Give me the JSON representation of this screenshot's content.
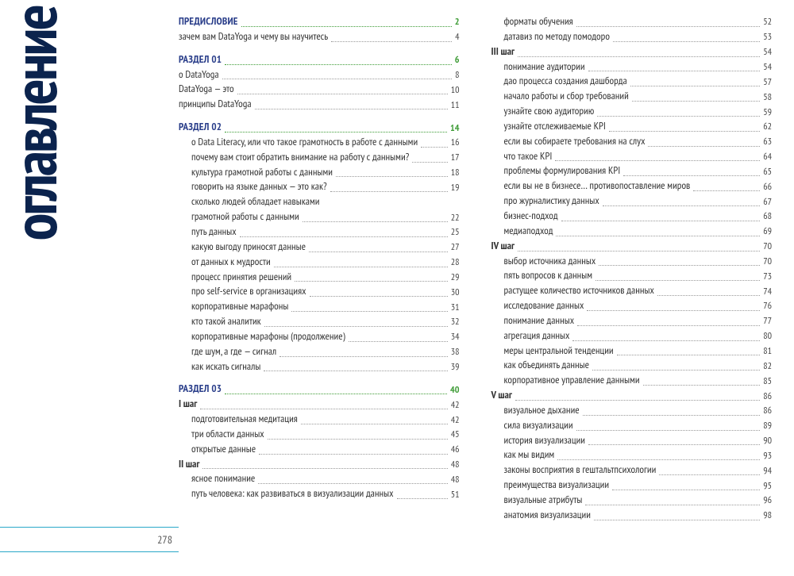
{
  "vtitle": "оглавление",
  "page_number": "278",
  "colors": {
    "title": "#0b234d",
    "section_label": "#2a3e8a",
    "section_page": "#3d9b35",
    "rule": "#2aa8c9",
    "text": "#333333"
  },
  "left_column": [
    {
      "kind": "section",
      "label": "ПРЕДИСЛОВИЕ",
      "page": "2",
      "indent": 0
    },
    {
      "kind": "entry",
      "label": "зачем вам DataYoga и чему вы научитесь",
      "page": "4",
      "indent": 0
    },
    {
      "kind": "spacer"
    },
    {
      "kind": "section",
      "label": "РАЗДЕЛ 01",
      "page": "6",
      "indent": 0
    },
    {
      "kind": "entry",
      "label": "о DataYoga",
      "page": "8",
      "indent": 0
    },
    {
      "kind": "entry",
      "label": "DataYoga — это",
      "page": "10",
      "indent": 0
    },
    {
      "kind": "entry",
      "label": "принципы DataYoga",
      "page": "11",
      "indent": 0
    },
    {
      "kind": "spacer"
    },
    {
      "kind": "section",
      "label": "РАЗДЕЛ 02",
      "page": "14",
      "indent": 0
    },
    {
      "kind": "entry",
      "label": "о Data Literacy, или что такое грамотность в работе с данными",
      "page": "16",
      "indent": 1
    },
    {
      "kind": "entry",
      "label": "почему вам стоит обратить внимание на работу с данными?",
      "page": "17",
      "indent": 1
    },
    {
      "kind": "entry",
      "label": "культура грамотной работы с данными",
      "page": "18",
      "indent": 1
    },
    {
      "kind": "entry",
      "label": "говорить на языке данных — это как?",
      "page": "19",
      "indent": 1
    },
    {
      "kind": "entry",
      "label": "сколько людей обладает навыками",
      "indent": 1
    },
    {
      "kind": "entry",
      "label": "грамотной работы с данными",
      "page": "22",
      "indent": 1
    },
    {
      "kind": "entry",
      "label": "путь данных",
      "page": "25",
      "indent": 1
    },
    {
      "kind": "entry",
      "label": "какую выгоду приносят данные",
      "page": "27",
      "indent": 1
    },
    {
      "kind": "entry",
      "label": "от данных к мудрости",
      "page": "28",
      "indent": 1
    },
    {
      "kind": "entry",
      "label": "процесс принятия решений",
      "page": "29",
      "indent": 1
    },
    {
      "kind": "entry",
      "label": "про self-service в организациях",
      "page": "30",
      "indent": 1
    },
    {
      "kind": "entry",
      "label": "корпоративные марафоны",
      "page": "31",
      "indent": 1
    },
    {
      "kind": "entry",
      "label": "кто такой аналитик",
      "page": "32",
      "indent": 1
    },
    {
      "kind": "entry",
      "label": "корпоративные марафоны (продолжение)",
      "page": "34",
      "indent": 1
    },
    {
      "kind": "entry",
      "label": "где шум, а где — сигнал",
      "page": "38",
      "indent": 1
    },
    {
      "kind": "entry",
      "label": "как искать сигналы",
      "page": "39",
      "indent": 1
    },
    {
      "kind": "spacer"
    },
    {
      "kind": "section",
      "label": "РАЗДЕЛ 03",
      "page": "40",
      "indent": 0
    },
    {
      "kind": "sub",
      "label": "I шаг",
      "page": "42",
      "indent": 0
    },
    {
      "kind": "entry",
      "label": "подготовительная медитация",
      "page": "42",
      "indent": 1
    },
    {
      "kind": "entry",
      "label": "три области данных",
      "page": "45",
      "indent": 1
    },
    {
      "kind": "entry",
      "label": "открытые данные",
      "page": "46",
      "indent": 1
    },
    {
      "kind": "sub",
      "label": "II шаг",
      "page": "48",
      "indent": 0
    },
    {
      "kind": "entry",
      "label": "ясное понимание",
      "page": "48",
      "indent": 1
    },
    {
      "kind": "entry",
      "label": "путь человека: как развиваться в визуализации данных",
      "page": "51",
      "indent": 1
    }
  ],
  "right_column": [
    {
      "kind": "entry",
      "label": "форматы обучения",
      "page": "52",
      "indent": 1
    },
    {
      "kind": "entry",
      "label": "датавиз по методу помодоро",
      "page": "53",
      "indent": 1
    },
    {
      "kind": "sub",
      "label": "III шаг",
      "page": "54",
      "indent": 0
    },
    {
      "kind": "entry",
      "label": "понимание аудитории",
      "page": "54",
      "indent": 1
    },
    {
      "kind": "entry",
      "label": "дао процесса создания дашборда",
      "page": "57",
      "indent": 1
    },
    {
      "kind": "entry",
      "label": "начало работы и сбор требований",
      "page": "58",
      "indent": 1
    },
    {
      "kind": "entry",
      "label": "узнайте свою аудиторию",
      "page": "59",
      "indent": 1
    },
    {
      "kind": "entry",
      "label": "узнайте отслеживаемые KPI",
      "page": "62",
      "indent": 1
    },
    {
      "kind": "entry",
      "label": "если вы собираете требования на слух",
      "page": "63",
      "indent": 1
    },
    {
      "kind": "entry",
      "label": "что такое KPI",
      "page": "64",
      "indent": 1
    },
    {
      "kind": "entry",
      "label": "проблемы формулирования KPI",
      "page": "65",
      "indent": 1
    },
    {
      "kind": "entry",
      "label": "если вы не в бизнесе… противопоставление миров",
      "page": "66",
      "indent": 1
    },
    {
      "kind": "entry",
      "label": "про журналистику данных",
      "page": "67",
      "indent": 1
    },
    {
      "kind": "entry",
      "label": "бизнес-подход",
      "page": "68",
      "indent": 1
    },
    {
      "kind": "entry",
      "label": "медиаподход",
      "page": "69",
      "indent": 1
    },
    {
      "kind": "sub",
      "label": "IV шаг",
      "page": "70",
      "indent": 0
    },
    {
      "kind": "entry",
      "label": "выбор источника данных",
      "page": "70",
      "indent": 1
    },
    {
      "kind": "entry",
      "label": "пять вопросов к данным",
      "page": "73",
      "indent": 1
    },
    {
      "kind": "entry",
      "label": "растущее количество источников данных",
      "page": "74",
      "indent": 1
    },
    {
      "kind": "entry",
      "label": "исследование данных",
      "page": "76",
      "indent": 1
    },
    {
      "kind": "entry",
      "label": "понимание данных",
      "page": "77",
      "indent": 1
    },
    {
      "kind": "entry",
      "label": "агрегация данных",
      "page": "80",
      "indent": 1
    },
    {
      "kind": "entry",
      "label": "меры центральной тенденции",
      "page": "81",
      "indent": 1
    },
    {
      "kind": "entry",
      "label": "как объединять данные",
      "page": "82",
      "indent": 1
    },
    {
      "kind": "entry",
      "label": "корпоративное управление данными",
      "page": "85",
      "indent": 1
    },
    {
      "kind": "sub",
      "label": "V шаг",
      "page": "86",
      "indent": 0
    },
    {
      "kind": "entry",
      "label": "визуальное дыхание",
      "page": "86",
      "indent": 1
    },
    {
      "kind": "entry",
      "label": "сила визуализации",
      "page": "89",
      "indent": 1
    },
    {
      "kind": "entry",
      "label": "история визуализации",
      "page": "90",
      "indent": 1
    },
    {
      "kind": "entry",
      "label": "как мы видим",
      "page": "93",
      "indent": 1
    },
    {
      "kind": "entry",
      "label": "законы восприятия в гештальтпсихологии",
      "page": "94",
      "indent": 1
    },
    {
      "kind": "entry",
      "label": "преимущества визуализации",
      "page": "95",
      "indent": 1
    },
    {
      "kind": "entry",
      "label": "визуальные атрибуты",
      "page": "96",
      "indent": 1
    },
    {
      "kind": "entry",
      "label": "анатомия визуализации",
      "page": "98",
      "indent": 1
    }
  ]
}
